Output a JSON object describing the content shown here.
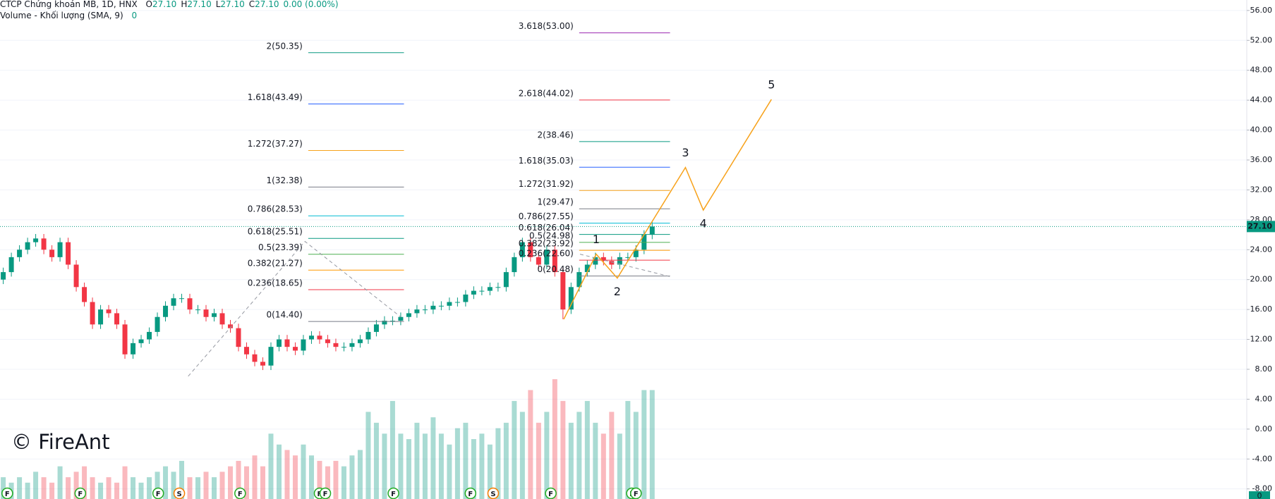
{
  "chart_data": {
    "type": "candlestick",
    "header": {
      "title": "CTCP Chứng khoán MB, 1D, HNX",
      "ohlc": [
        {
          "k": "O",
          "v": "27.10"
        },
        {
          "k": "H",
          "v": "27.10"
        },
        {
          "k": "L",
          "v": "27.10"
        },
        {
          "k": "C",
          "v": "27.10"
        }
      ],
      "change": "0.00 (0.00%)"
    },
    "volume_legend": {
      "title": "Volume - Khối lượng (SMA, 9)",
      "value": "0"
    },
    "watermark": "© FireAnt",
    "xlim": [
      -0.4,
      153.3
    ],
    "ylim": [
      -9.35,
      57.4
    ],
    "yticks": [
      {
        "value": 56,
        "label": "56.00"
      },
      {
        "value": 52,
        "label": "52.00"
      },
      {
        "value": 48,
        "label": "48.00"
      },
      {
        "value": 44,
        "label": "44.00"
      },
      {
        "value": 40,
        "label": "40.00"
      },
      {
        "value": 36,
        "label": "36.00"
      },
      {
        "value": 32,
        "label": "32.00"
      },
      {
        "value": 28,
        "label": "28.00"
      },
      {
        "value": 24,
        "label": "24.00"
      },
      {
        "value": 20,
        "label": "20.00"
      },
      {
        "value": 16,
        "label": "16.00"
      },
      {
        "value": 12,
        "label": "12.00"
      },
      {
        "value": 8,
        "label": "8.00"
      },
      {
        "value": 4,
        "label": "4.00"
      },
      {
        "value": 0,
        "label": "0.00"
      },
      {
        "value": -4,
        "label": "-4.00"
      },
      {
        "value": -8,
        "label": "-8.00"
      }
    ],
    "grid": true,
    "up_color": "#089981",
    "down_color": "#f23645",
    "open": [
      20,
      21,
      23,
      24,
      25,
      25.5,
      24,
      23,
      25,
      22,
      19,
      17,
      14,
      16,
      15.5,
      14,
      10,
      11.5,
      12,
      13,
      15,
      16.5,
      17.5,
      17.5,
      16,
      16,
      15,
      15.5,
      14,
      13.5,
      11,
      10,
      9,
      8.5,
      11,
      12,
      11,
      10.5,
      12,
      12.5,
      12,
      11.5,
      11,
      11,
      11.5,
      12,
      13,
      14,
      14.5,
      14.5,
      15,
      15.5,
      16,
      16,
      16.5,
      16.5,
      17,
      17,
      18,
      18.5,
      18.5,
      19,
      19,
      21,
      23,
      25,
      23,
      22,
      24,
      21,
      16,
      19,
      21,
      22,
      23,
      22.5,
      22,
      23,
      23,
      24,
      26
    ],
    "high": [
      21.6,
      23.6,
      24.6,
      25.6,
      26.1,
      26.1,
      24.6,
      25.6,
      25.6,
      22.6,
      19.6,
      17.6,
      16.6,
      16.6,
      16.1,
      14.6,
      12.1,
      12.6,
      13.6,
      15.6,
      17.1,
      18.1,
      18.1,
      18.1,
      16.6,
      16.6,
      16.1,
      16.1,
      14.6,
      14.1,
      11.6,
      10.6,
      9.6,
      11.6,
      12.6,
      12.6,
      11.6,
      12.6,
      13.1,
      13.1,
      12.6,
      12.1,
      11.6,
      12.1,
      12.6,
      13.6,
      14.6,
      15.1,
      15.1,
      15.6,
      16.1,
      16.6,
      16.6,
      17.1,
      17.1,
      17.6,
      17.6,
      18.6,
      19.1,
      19.1,
      19.6,
      19.6,
      21.6,
      23.6,
      25.6,
      25.6,
      23.6,
      24.6,
      24.6,
      21.6,
      19.6,
      21.6,
      22.6,
      23.6,
      23.6,
      23.1,
      23.6,
      23.6,
      24.6,
      26.6,
      27.7
    ],
    "low": [
      19.4,
      20.4,
      22.4,
      23.4,
      24.4,
      23.4,
      22.4,
      22.4,
      21.4,
      18.4,
      16.4,
      13.4,
      13.4,
      14.9,
      13.4,
      9.4,
      9.4,
      10.9,
      11.4,
      12.4,
      14.4,
      15.9,
      16.9,
      15.4,
      15.4,
      14.4,
      14.4,
      13.4,
      12.9,
      10.4,
      9.4,
      8.4,
      7.9,
      7.9,
      10.4,
      10.4,
      9.9,
      9.9,
      11.4,
      11.4,
      10.9,
      10.4,
      10.4,
      10.4,
      10.9,
      11.4,
      12.4,
      13.4,
      13.9,
      13.9,
      14.4,
      14.9,
      15.4,
      15.4,
      15.9,
      15.9,
      16.4,
      16.4,
      17.4,
      17.9,
      17.9,
      18.4,
      18.4,
      20.4,
      22.4,
      22.4,
      21.4,
      21.4,
      20.4,
      14.7,
      15.4,
      18.4,
      20.4,
      21.4,
      21.9,
      21.4,
      21.4,
      22.4,
      22.4,
      23.4,
      25.4
    ],
    "close": [
      21,
      23,
      24,
      25,
      25.5,
      24,
      23,
      25,
      22,
      19,
      17,
      14,
      16,
      15.5,
      14,
      10,
      11.5,
      12,
      13,
      15,
      16.5,
      17.5,
      17.5,
      16,
      16,
      15,
      15.5,
      14,
      13.5,
      11,
      10,
      9,
      8.5,
      11,
      12,
      11,
      10.5,
      12,
      12.5,
      12,
      11.5,
      11,
      11,
      11.5,
      12,
      13,
      14,
      14.5,
      14.5,
      15,
      15.5,
      16,
      16,
      16.5,
      16.5,
      17,
      17,
      18,
      18.5,
      18.5,
      19,
      19,
      21,
      23,
      25,
      23,
      22,
      24,
      21,
      16,
      19,
      21,
      22,
      23,
      22.5,
      22,
      23,
      23,
      24,
      26,
      27.1
    ],
    "volume": [
      2,
      1.5,
      2,
      1.5,
      2.5,
      2,
      1.5,
      3,
      2,
      2.5,
      3,
      2,
      1.5,
      2,
      1.5,
      3,
      2,
      1.5,
      2,
      2.5,
      3,
      2.5,
      3.5,
      2,
      2,
      2.5,
      2,
      2.5,
      3,
      3.5,
      3,
      4,
      3,
      6,
      5,
      4.5,
      4,
      5,
      4,
      3.5,
      3,
      3.5,
      3,
      4,
      4.5,
      8,
      7,
      6,
      9,
      6,
      5.5,
      7,
      6,
      7.5,
      6,
      5,
      6.5,
      7,
      5.5,
      6,
      5,
      6.5,
      7,
      9,
      8,
      10,
      7,
      8,
      11,
      9,
      7,
      8,
      9,
      7,
      6,
      8,
      6,
      9,
      8,
      10,
      10
    ],
    "last_price": {
      "value": 27.1,
      "label": "27.10",
      "color": "#089981"
    },
    "fib_sets": [
      {
        "x": [
          37.6,
          49.4
        ],
        "levels": [
          {
            "label": "2(50.35)",
            "value": 50.35,
            "color": "#089981"
          },
          {
            "label": "1.618(43.49)",
            "value": 43.49,
            "color": "#2962ff"
          },
          {
            "label": "1.272(37.27)",
            "value": 37.27,
            "color": "#f7a21b"
          },
          {
            "label": "1(32.38)",
            "value": 32.38,
            "color": "#787b86"
          },
          {
            "label": "0.786(28.53)",
            "value": 28.53,
            "color": "#00bcd4"
          },
          {
            "label": "0.618(25.51)",
            "value": 25.51,
            "color": "#089981"
          },
          {
            "label": "0.5(23.39)",
            "value": 23.39,
            "color": "#4caf50"
          },
          {
            "label": "0.382(21.27)",
            "value": 21.27,
            "color": "#ff9800"
          },
          {
            "label": "0.236(18.65)",
            "value": 18.65,
            "color": "#f23645"
          },
          {
            "label": "0(14.40)",
            "value": 14.4,
            "color": "#787b86"
          }
        ]
      },
      {
        "x": [
          71,
          82.2
        ],
        "levels": [
          {
            "label": "3.618(53.00)",
            "value": 53,
            "color": "#9c27b0"
          },
          {
            "label": "2.618(44.02)",
            "value": 44.02,
            "color": "#f23645"
          },
          {
            "label": "2(38.46)",
            "value": 38.46,
            "color": "#089981"
          },
          {
            "label": "1.618(35.03)",
            "value": 35.03,
            "color": "#2962ff"
          },
          {
            "label": "1.272(31.92)",
            "value": 31.92,
            "color": "#f7a21b"
          },
          {
            "label": "1(29.47)",
            "value": 29.47,
            "color": "#787b86"
          },
          {
            "label": "0.786(27.55)",
            "value": 27.55,
            "color": "#00bcd4"
          },
          {
            "label": "0.618(26.04)",
            "value": 26.04,
            "color": "#089981"
          },
          {
            "label": "0.5(24.98)",
            "value": 24.98,
            "color": "#4caf50"
          },
          {
            "label": "0.382(23.92)",
            "value": 23.92,
            "color": "#ff9800"
          },
          {
            "label": "0.236(22.60)",
            "value": 22.6,
            "color": "#f23645"
          },
          {
            "label": "0(20.48)",
            "value": 20.48,
            "color": "#787b86"
          }
        ]
      }
    ],
    "dashed_lines": [
      {
        "x": [
          22.8,
          37.2,
          49.0
        ],
        "y": [
          7.07,
          25.1,
          15.0
        ]
      },
      {
        "x": [
          71.1,
          82.2
        ],
        "y": [
          23.4,
          20.4
        ]
      }
    ],
    "wave": {
      "color": "#f7a21b",
      "x": [
        69.1,
        73.1,
        75.7,
        84.1,
        86.3,
        94.7
      ],
      "y": [
        14.7,
        23.4,
        20.2,
        35.0,
        29.3,
        44.1
      ],
      "labels": [
        null,
        "1",
        "2",
        "3",
        "4",
        "5"
      ]
    },
    "events": [
      {
        "x": 0.5,
        "label": "F",
        "color": "#22ab22"
      },
      {
        "x": 9.5,
        "label": "F",
        "color": "#22ab22"
      },
      {
        "x": 19.1,
        "label": "F",
        "color": "#22ab22"
      },
      {
        "x": 21.7,
        "label": "S",
        "color": "#f57c00"
      },
      {
        "x": 29.2,
        "label": "F",
        "color": "#22ab22"
      },
      {
        "x": 39.0,
        "label": "F",
        "color": "#22ab22"
      },
      {
        "x": 39.7,
        "label": "F",
        "color": "#22ab22"
      },
      {
        "x": 48.1,
        "label": "F",
        "color": "#22ab22"
      },
      {
        "x": 57.6,
        "label": "F",
        "color": "#22ab22"
      },
      {
        "x": 60.4,
        "label": "S",
        "color": "#f57c00"
      },
      {
        "x": 67.5,
        "label": "F",
        "color": "#22ab22"
      },
      {
        "x": 77.5,
        "label": "F",
        "color": "#22ab22"
      },
      {
        "x": 78.0,
        "label": "F",
        "color": "#22ab22"
      }
    ]
  }
}
